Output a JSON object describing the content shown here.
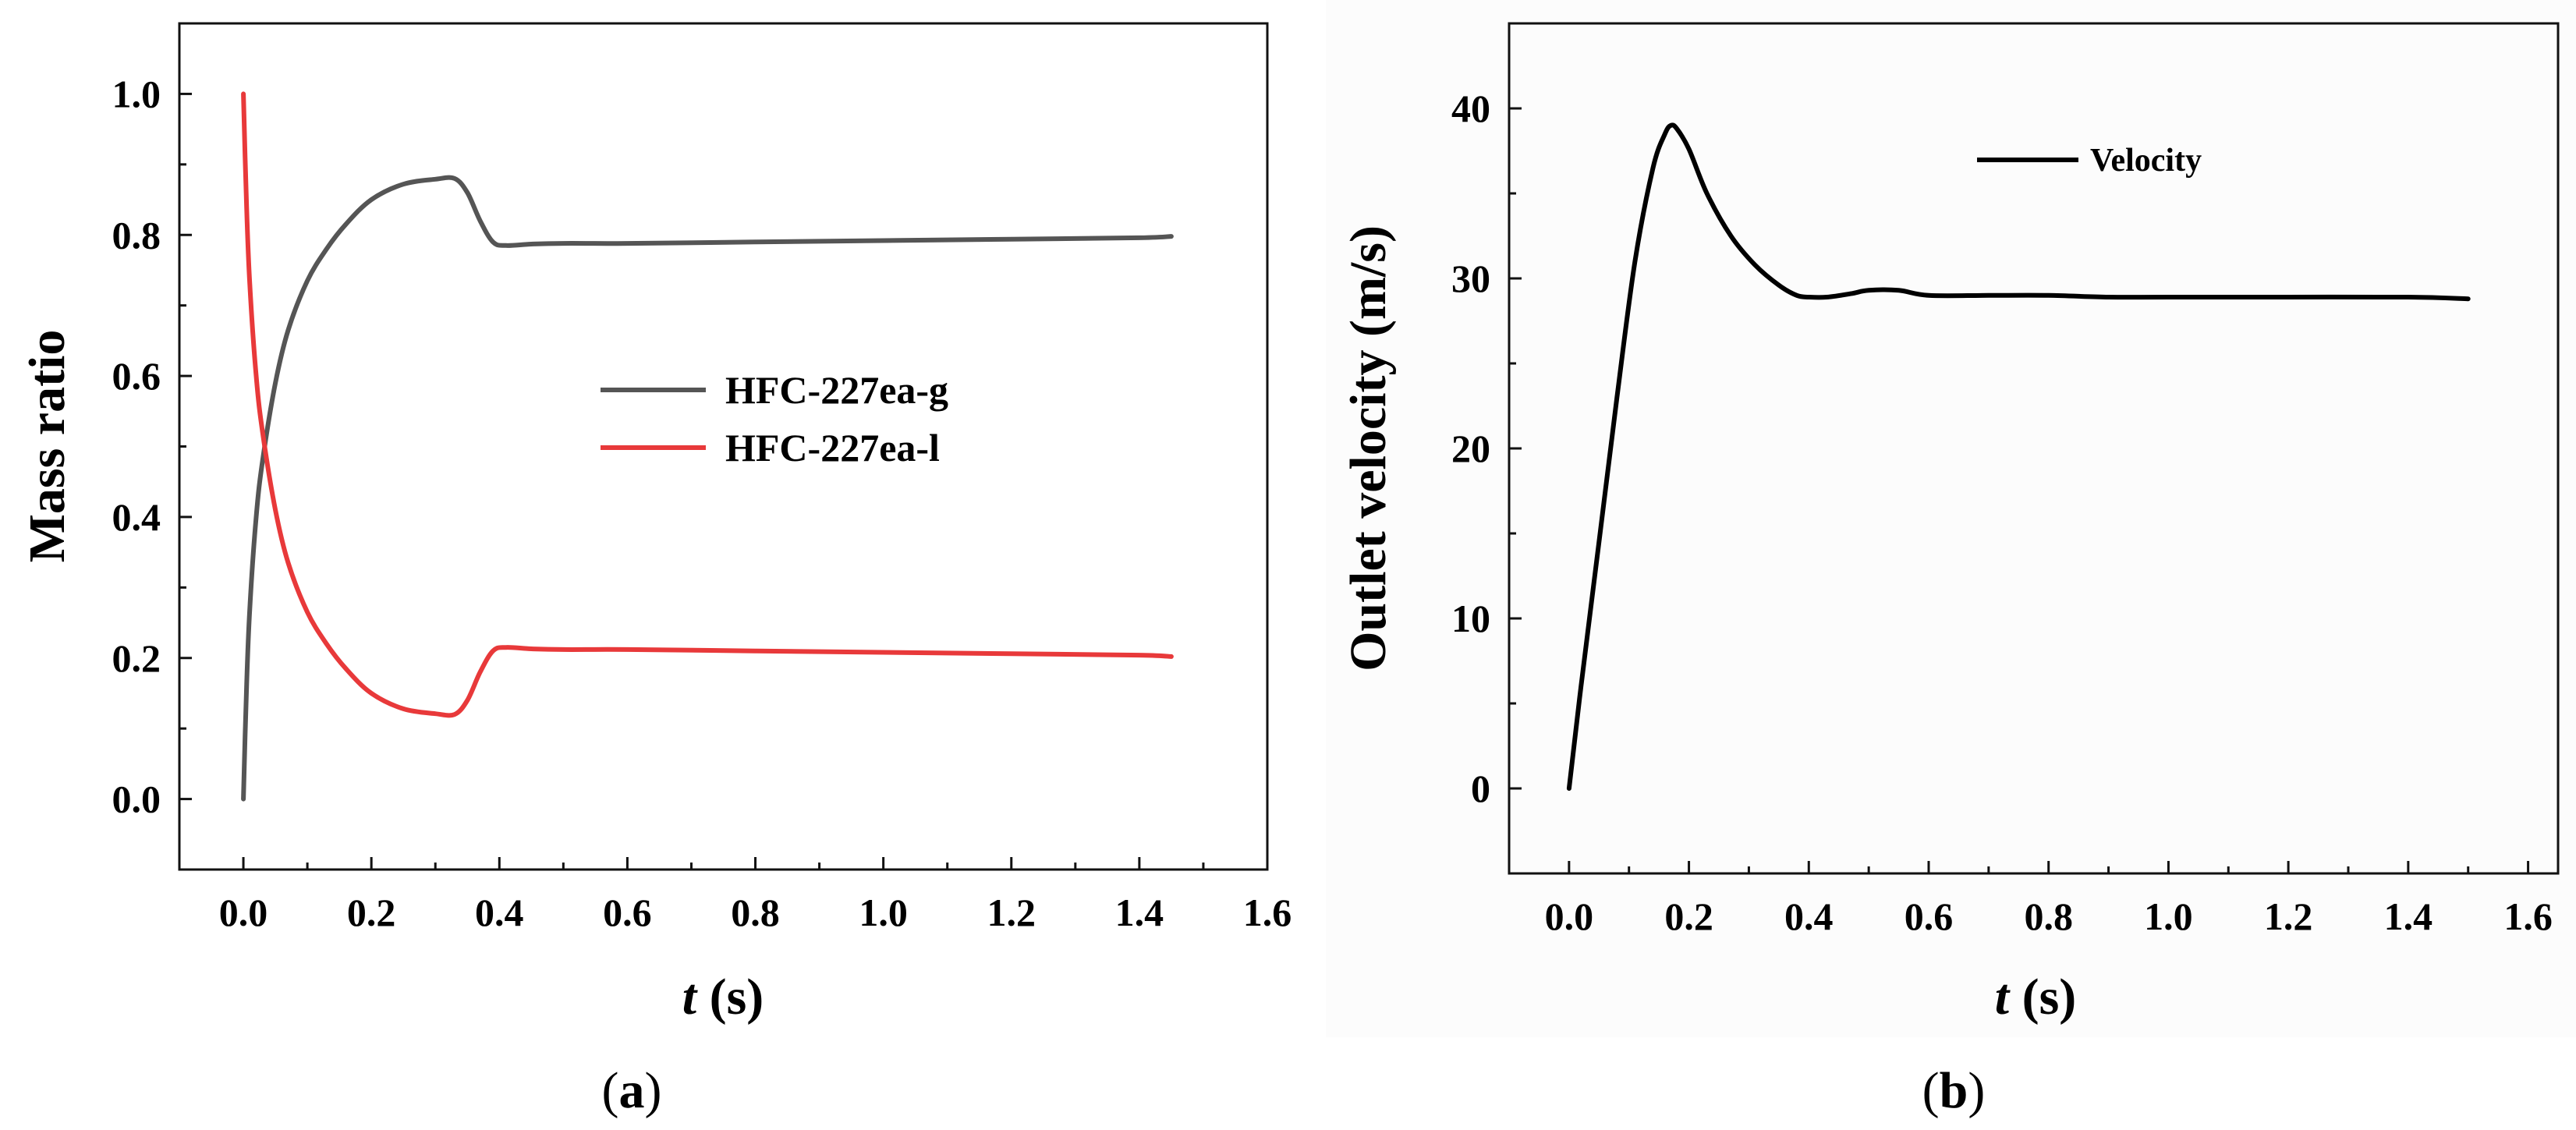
{
  "chart_data": [
    {
      "panel_label": "a",
      "type": "line",
      "xlabel": {
        "var": "t",
        "unit": " (s)"
      },
      "ylabel": "Mass ratio",
      "xlim": [
        -0.1,
        1.6
      ],
      "ylim": [
        -0.1,
        1.1
      ],
      "xticks": [
        0.0,
        0.2,
        0.4,
        0.6,
        0.8,
        1.0,
        1.2,
        1.4,
        1.6
      ],
      "yticks": [
        0.0,
        0.2,
        0.4,
        0.6,
        0.8,
        1.0
      ],
      "xtick_labels": [
        "0.0",
        "0.2",
        "0.4",
        "0.6",
        "0.8",
        "1.0",
        "1.2",
        "1.4",
        "1.6"
      ],
      "ytick_labels": [
        "0.0",
        "0.2",
        "0.4",
        "0.6",
        "0.8",
        "1.0"
      ],
      "grid": false,
      "legend_position": "center-right",
      "series": [
        {
          "name": "HFC-227ea-g",
          "color": "#555555",
          "x": [
            0.0,
            0.005,
            0.01,
            0.02,
            0.03,
            0.05,
            0.07,
            0.1,
            0.13,
            0.16,
            0.2,
            0.25,
            0.3,
            0.33,
            0.35,
            0.37,
            0.39,
            0.41,
            0.45,
            0.5,
            0.6,
            0.8,
            1.0,
            1.2,
            1.4,
            1.45
          ],
          "y": [
            0.0,
            0.16,
            0.27,
            0.4,
            0.48,
            0.59,
            0.665,
            0.735,
            0.78,
            0.815,
            0.85,
            0.872,
            0.879,
            0.88,
            0.86,
            0.82,
            0.79,
            0.785,
            0.787,
            0.788,
            0.788,
            0.79,
            0.792,
            0.794,
            0.796,
            0.798
          ]
        },
        {
          "name": "HFC-227ea-l",
          "color": "#e8393a",
          "x": [
            0.0,
            0.005,
            0.01,
            0.02,
            0.03,
            0.05,
            0.07,
            0.1,
            0.13,
            0.16,
            0.2,
            0.25,
            0.3,
            0.33,
            0.35,
            0.37,
            0.39,
            0.41,
            0.45,
            0.5,
            0.6,
            0.8,
            1.0,
            1.2,
            1.4,
            1.45
          ],
          "y": [
            1.0,
            0.84,
            0.73,
            0.6,
            0.52,
            0.41,
            0.335,
            0.265,
            0.22,
            0.185,
            0.15,
            0.128,
            0.121,
            0.12,
            0.14,
            0.18,
            0.21,
            0.215,
            0.213,
            0.212,
            0.212,
            0.21,
            0.208,
            0.206,
            0.204,
            0.202
          ]
        }
      ]
    },
    {
      "panel_label": "b",
      "type": "line",
      "xlabel": {
        "var": "t",
        "unit": " (s)"
      },
      "ylabel": "Outlet velocity (m/s)",
      "xlim": [
        -0.1,
        1.65
      ],
      "ylim": [
        -5,
        45
      ],
      "xticks": [
        0.0,
        0.2,
        0.4,
        0.6,
        0.8,
        1.0,
        1.2,
        1.4,
        1.6
      ],
      "yticks": [
        0,
        10,
        20,
        30,
        40
      ],
      "xtick_labels": [
        "0.0",
        "0.2",
        "0.4",
        "0.6",
        "0.8",
        "1.0",
        "1.2",
        "1.4",
        "1.6"
      ],
      "ytick_labels": [
        "0",
        "10",
        "20",
        "30",
        "40"
      ],
      "grid": false,
      "legend_position": "top-center",
      "series": [
        {
          "name": "Velocity",
          "color": "#000000",
          "x": [
            0.0,
            0.02,
            0.05,
            0.08,
            0.11,
            0.14,
            0.16,
            0.17,
            0.18,
            0.2,
            0.23,
            0.27,
            0.31,
            0.35,
            0.38,
            0.4,
            0.43,
            0.47,
            0.5,
            0.55,
            0.6,
            0.7,
            0.8,
            0.9,
            1.0,
            1.2,
            1.4,
            1.5
          ],
          "y": [
            0.0,
            6.0,
            14.5,
            23.0,
            31.0,
            36.5,
            38.5,
            39.0,
            38.8,
            37.6,
            35.0,
            32.5,
            30.8,
            29.6,
            29.0,
            28.9,
            28.9,
            29.1,
            29.3,
            29.3,
            29.0,
            29.0,
            29.0,
            28.9,
            28.9,
            28.9,
            28.9,
            28.8
          ]
        }
      ]
    }
  ]
}
